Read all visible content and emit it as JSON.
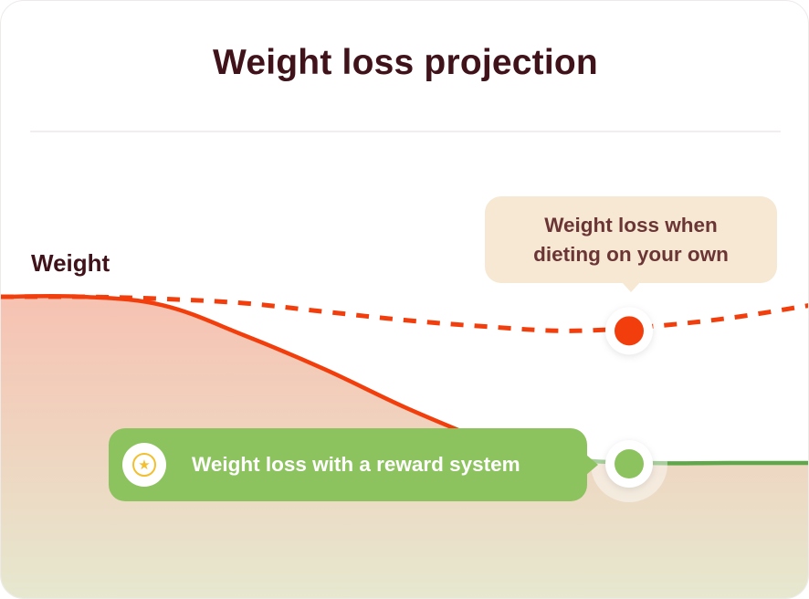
{
  "title": "Weight loss projection",
  "chart_data": {
    "type": "line",
    "ylabel": "Weight",
    "xlabel": "",
    "x": [
      0,
      10,
      20,
      30,
      40,
      50,
      60,
      70,
      80,
      90,
      100
    ],
    "ylim": [
      0,
      100
    ],
    "series": [
      {
        "name": "Weight loss when dieting on your own",
        "style": "dashed",
        "color": "#f23e0c",
        "values": [
          100,
          100,
          99.5,
          98.5,
          96.5,
          94.5,
          93,
          92,
          93,
          95,
          98
        ],
        "marker_index": 7
      },
      {
        "name": "Weight loss with a reward system",
        "style": "solid",
        "color": "#f23e0c",
        "end_color": "#5fa84a",
        "values": [
          100,
          100,
          98,
          91,
          83,
          74,
          66,
          62,
          61,
          61,
          61
        ],
        "marker_index": 7
      }
    ]
  },
  "colors": {
    "diet_line": "#f23e0c",
    "reward_line": "#5fa84a",
    "diet_marker": "#f23e0c",
    "reward_marker": "#8dc35f",
    "area_top": "#f7c2b2",
    "area_bottom": "#e6e8cf",
    "title": "#40121a"
  },
  "annotations": {
    "diet_bubble": "Weight loss when dieting on your own",
    "reward_bubble": "Weight loss with a reward system",
    "reward_icon": "star-icon"
  }
}
